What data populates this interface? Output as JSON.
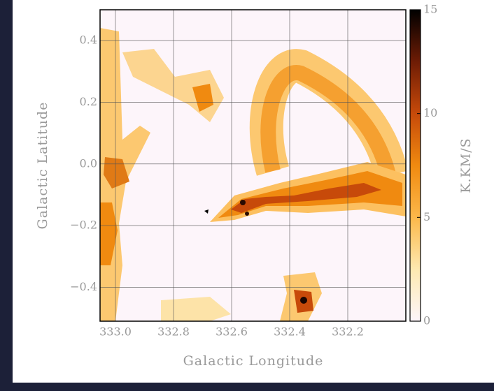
{
  "chart_data": {
    "type": "heatmap",
    "x_label": "Galactic Longitude",
    "y_label": "Galactic Latitude",
    "xlim": [
      333.053,
      332.0
    ],
    "ylim": [
      -0.51,
      0.5
    ],
    "xticks": [
      {
        "value": 333,
        "label": "333.0"
      },
      332.8,
      332.6,
      332.4,
      332.2
    ],
    "yticks": [
      {
        "value": -0.4,
        "label": "−0.4"
      },
      {
        "value": -0.2,
        "label": "−0.2"
      },
      {
        "value": 0,
        "label": "0.0"
      },
      0.2,
      0.4
    ],
    "grid": true,
    "colorbar": {
      "label": "K.KM/S",
      "clim": [
        0,
        15
      ],
      "ticks": [
        0,
        5,
        10,
        15
      ],
      "colormap": [
        "#fdf5fa",
        "#fde9b0",
        "#fcb84a",
        "#f08a10",
        "#c74a0a",
        "#6e1c05",
        "#000000"
      ]
    }
  }
}
